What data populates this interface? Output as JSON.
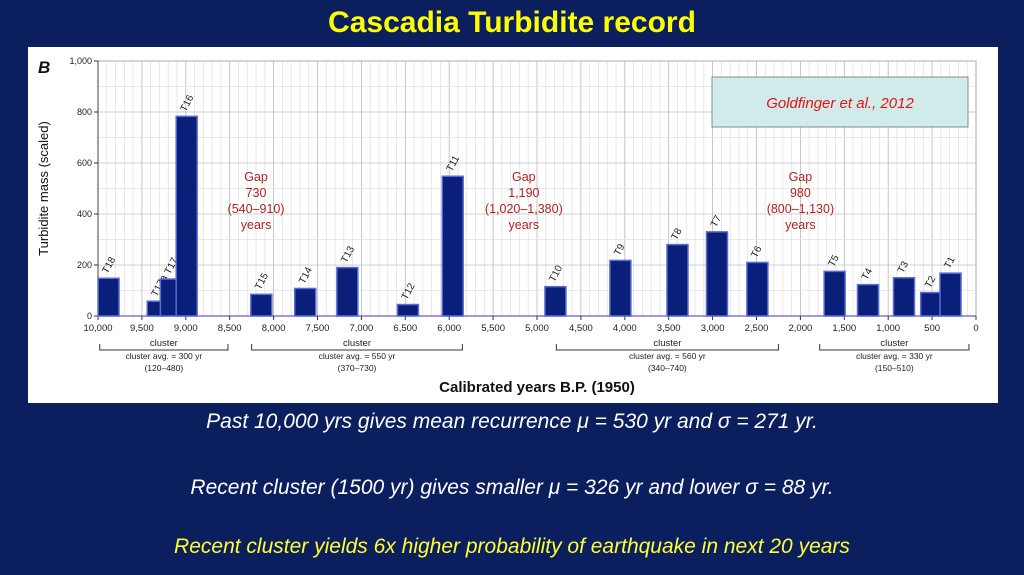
{
  "slide": {
    "title": "Cascadia Turbidite record",
    "lines": [
      "Past 10,000 yrs gives mean recurrence μ = 530 yr and σ = 271 yr.",
      "Recent cluster (1500 yr) gives smaller μ = 326 yr and lower σ = 88 yr.",
      "Recent cluster yields 6x higher probability of earthquake in next 20 years"
    ]
  },
  "chart_data": {
    "type": "bar",
    "panel_label": "B",
    "xlabel": "Calibrated years B.P. (1950)",
    "ylabel": "Turbidite mass (scaled)",
    "xlim": [
      10000,
      0
    ],
    "ylim": [
      0,
      1000
    ],
    "x_reversed": true,
    "xticks": [
      10000,
      9500,
      9000,
      8500,
      8000,
      7500,
      7000,
      6500,
      6000,
      5500,
      5000,
      4500,
      4000,
      3500,
      3000,
      2500,
      2000,
      1500,
      1000,
      500,
      0
    ],
    "xtick_labels": [
      "10,000",
      "9,500",
      "9,000",
      "8,500",
      "8,000",
      "7,500",
      "7,000",
      "6,500",
      "6,000",
      "5,500",
      "5,000",
      "4,500",
      "4,000",
      "3,500",
      "3,000",
      "2,500",
      "2,000",
      "1,500",
      "1,000",
      "500",
      "0"
    ],
    "yticks": [
      0,
      200,
      400,
      600,
      800,
      1000
    ],
    "ytick_labels": [
      "0",
      "200",
      "400",
      "600",
      "800",
      "1,000"
    ],
    "grid": true,
    "bar_color": "#0a1f7a",
    "bars": [
      {
        "label": "T18",
        "x": 9880,
        "value": 148
      },
      {
        "label": "T17a",
        "x": 9320,
        "value": 58
      },
      {
        "label": "T17",
        "x": 9170,
        "value": 145
      },
      {
        "label": "T16",
        "x": 8990,
        "value": 783
      },
      {
        "label": "T15",
        "x": 8140,
        "value": 85
      },
      {
        "label": "T14",
        "x": 7640,
        "value": 108
      },
      {
        "label": "T13",
        "x": 7160,
        "value": 190
      },
      {
        "label": "T12",
        "x": 6470,
        "value": 45
      },
      {
        "label": "T11",
        "x": 5960,
        "value": 548
      },
      {
        "label": "T10",
        "x": 4790,
        "value": 115
      },
      {
        "label": "T9",
        "x": 4050,
        "value": 218
      },
      {
        "label": "T8",
        "x": 3400,
        "value": 280
      },
      {
        "label": "T7",
        "x": 2950,
        "value": 330
      },
      {
        "label": "T6",
        "x": 2490,
        "value": 210
      },
      {
        "label": "T5",
        "x": 1610,
        "value": 175
      },
      {
        "label": "T4",
        "x": 1230,
        "value": 123
      },
      {
        "label": "T3",
        "x": 820,
        "value": 150
      },
      {
        "label": "T2",
        "x": 510,
        "value": 92
      },
      {
        "label": "T1",
        "x": 290,
        "value": 168
      }
    ],
    "gaps": [
      {
        "x": 8200,
        "lines": [
          "Gap",
          "730",
          "(540–910)",
          "years"
        ]
      },
      {
        "x": 5150,
        "lines": [
          "Gap",
          "1,190",
          "(1,020–1,380)",
          "years"
        ]
      },
      {
        "x": 2000,
        "lines": [
          "Gap",
          "980",
          "(800–1,130)",
          "years"
        ]
      }
    ],
    "gap_color": "#b22222",
    "clusters": [
      {
        "start": 9980,
        "end": 8520,
        "label": "cluster",
        "avg": "cluster avg. = 300 yr",
        "range": "(120–480)"
      },
      {
        "start": 8250,
        "end": 5850,
        "label": "cluster",
        "avg": "cluster avg. = 550 yr",
        "range": "(370–730)"
      },
      {
        "start": 4780,
        "end": 2250,
        "label": "cluster",
        "avg": "cluster avg. = 560 yr",
        "range": "(340–740)"
      },
      {
        "start": 1780,
        "end": 80,
        "label": "cluster",
        "avg": "cluster avg. = 330 yr",
        "range": "(150–510)"
      }
    ],
    "annotation": {
      "text": "Goldfinger et al., 2012",
      "color": "#ee1111",
      "box_color": "#cfeceb"
    }
  }
}
